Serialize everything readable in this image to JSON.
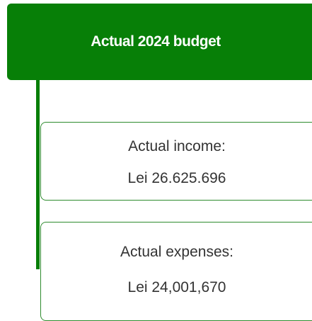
{
  "title": "Actual 2024 budget",
  "items": [
    {
      "label": "Actual income:",
      "value": "Lei 26.625.696"
    },
    {
      "label": "Actual expenses:",
      "value": "Lei 24,001,670"
    }
  ]
}
